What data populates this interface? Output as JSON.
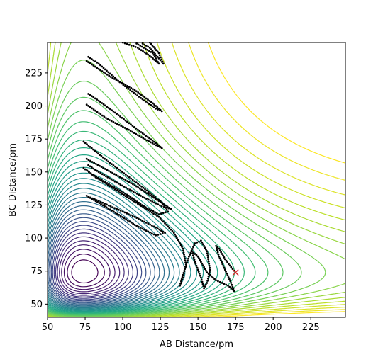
{
  "chart_data": {
    "type": "contour",
    "title": "",
    "xlabel": "AB Distance/pm",
    "ylabel": "BC Distance/pm",
    "xlim": [
      50,
      248
    ],
    "ylim": [
      40,
      248
    ],
    "x_ticks": [
      50,
      75,
      100,
      125,
      150,
      175,
      200,
      225
    ],
    "y_ticks": [
      50,
      75,
      100,
      125,
      150,
      175,
      200,
      225
    ],
    "grid": false,
    "legend": "none",
    "colormap": "viridis",
    "contour_levels": 40,
    "surface": {
      "form": "symmetric-morse-valley",
      "minimum_distance": 74,
      "width_parameter": 0.02,
      "description_units": "pm"
    },
    "trajectory": {
      "color": "#000000",
      "marker": "dot",
      "points": [
        [
          74,
          173
        ],
        [
          88,
          160
        ],
        [
          102,
          148
        ],
        [
          116,
          136
        ],
        [
          126,
          127
        ],
        [
          130,
          120
        ],
        [
          124,
          118
        ],
        [
          114,
          124
        ],
        [
          104,
          132
        ],
        [
          92,
          140
        ],
        [
          80,
          148
        ],
        [
          74,
          153
        ],
        [
          82,
          146
        ],
        [
          96,
          136
        ],
        [
          110,
          126
        ],
        [
          124,
          116
        ],
        [
          134,
          104
        ],
        [
          140,
          92
        ],
        [
          142,
          80
        ],
        [
          140,
          70
        ],
        [
          138,
          64
        ],
        [
          140,
          72
        ],
        [
          144,
          86
        ],
        [
          148,
          96
        ],
        [
          152,
          98
        ],
        [
          156,
          90
        ],
        [
          158,
          76
        ],
        [
          156,
          66
        ],
        [
          154,
          62
        ],
        [
          152,
          70
        ],
        [
          148,
          82
        ],
        [
          146,
          90
        ],
        [
          150,
          86
        ],
        [
          156,
          74
        ],
        [
          162,
          68
        ],
        [
          166,
          66
        ],
        [
          170,
          64
        ],
        [
          174,
          60
        ],
        [
          172,
          66
        ],
        [
          168,
          76
        ],
        [
          164,
          86
        ],
        [
          162,
          94
        ],
        [
          164,
          92
        ],
        [
          168,
          84
        ],
        [
          172,
          78
        ],
        [
          175,
          74
        ]
      ],
      "loops": [
        [
          [
            76,
            234
          ],
          [
            92,
            222
          ],
          [
            108,
            212
          ],
          [
            120,
            202
          ],
          [
            126,
            196
          ],
          [
            122,
            198
          ],
          [
            112,
            206
          ],
          [
            98,
            218
          ],
          [
            84,
            232
          ],
          [
            76,
            238
          ]
        ],
        [
          [
            76,
            201
          ],
          [
            90,
            190
          ],
          [
            104,
            182
          ],
          [
            116,
            174
          ],
          [
            126,
            168
          ],
          [
            122,
            172
          ],
          [
            110,
            182
          ],
          [
            96,
            194
          ],
          [
            84,
            204
          ],
          [
            76,
            210
          ]
        ],
        [
          [
            76,
            160
          ],
          [
            92,
            150
          ],
          [
            108,
            140
          ],
          [
            124,
            128
          ],
          [
            132,
            122
          ],
          [
            126,
            124
          ],
          [
            112,
            132
          ],
          [
            96,
            142
          ],
          [
            84,
            150
          ],
          [
            76,
            156
          ]
        ],
        [
          [
            76,
            132
          ],
          [
            92,
            124
          ],
          [
            108,
            116
          ],
          [
            122,
            108
          ],
          [
            128,
            104
          ],
          [
            122,
            102
          ],
          [
            108,
            110
          ],
          [
            94,
            120
          ],
          [
            82,
            128
          ],
          [
            76,
            132
          ]
        ],
        [
          [
            118,
            248
          ],
          [
            124,
            240
          ],
          [
            127,
            232
          ],
          [
            124,
            236
          ],
          [
            118,
            244
          ],
          [
            112,
            248
          ]
        ],
        [
          [
            100,
            248
          ],
          [
            110,
            244
          ],
          [
            118,
            238
          ],
          [
            124,
            232
          ],
          [
            120,
            240
          ],
          [
            108,
            248
          ]
        ]
      ]
    },
    "marker": {
      "x": 175,
      "y": 74,
      "symbol": "x",
      "color": "#d62728"
    }
  }
}
